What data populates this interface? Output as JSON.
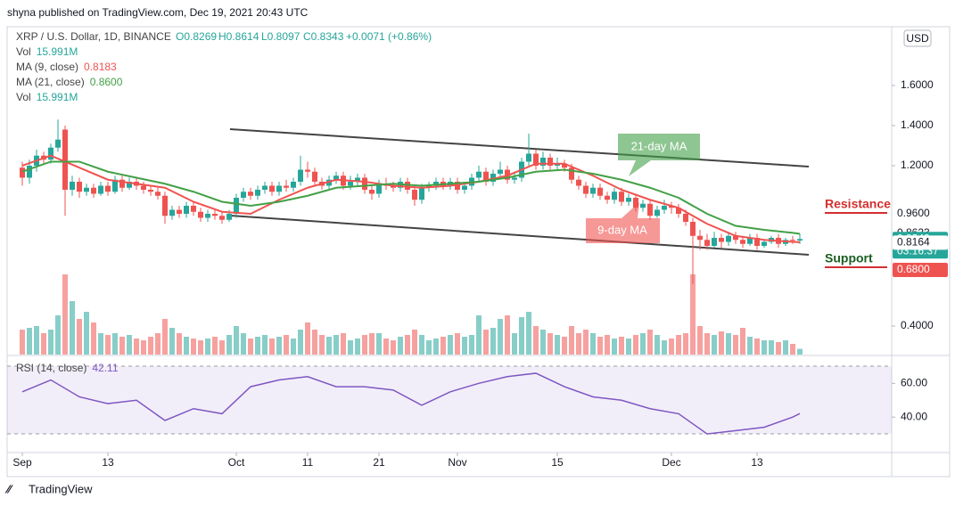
{
  "header": {
    "publisher": "shyna published on TradingView.com, Dec 19, 2021 20:43 UTC",
    "symbol": "XRP / U.S. Dollar, 1D, BINANCE",
    "ohlc": [
      "O0.8269",
      "H0.8614",
      "L0.8097",
      "C0.8343"
    ],
    "change": "+0.0071 (+0.86%)",
    "currency": "USD",
    "brand": "TradingView"
  },
  "chart_data": {
    "type": "candlestick",
    "legend": [
      {
        "name": "Vol",
        "value": "15.991M"
      },
      {
        "name": "MA (9, close)",
        "value": "0.8183"
      },
      {
        "name": "MA (21, close)",
        "value": "0.8600"
      },
      {
        "name": "Vol",
        "value": "15.991M"
      }
    ],
    "categories": [
      "Sep",
      null,
      null,
      null,
      null,
      null,
      null,
      null,
      null,
      null,
      null,
      null,
      "13",
      null,
      null,
      null,
      null,
      null,
      null,
      null,
      null,
      null,
      null,
      null,
      null,
      null,
      null,
      null,
      null,
      null,
      "Oct",
      null,
      null,
      null,
      null,
      null,
      null,
      null,
      null,
      null,
      "11",
      null,
      null,
      null,
      null,
      null,
      null,
      null,
      null,
      null,
      "21",
      null,
      null,
      null,
      null,
      null,
      null,
      null,
      null,
      null,
      null,
      "Nov",
      null,
      null,
      null,
      null,
      null,
      null,
      null,
      null,
      null,
      null,
      null,
      null,
      null,
      "15",
      null,
      null,
      null,
      null,
      null,
      null,
      null,
      null,
      null,
      null,
      null,
      null,
      null,
      null,
      null,
      "Dec",
      null,
      null,
      null,
      null,
      null,
      null,
      null,
      null,
      null,
      null,
      null,
      "13",
      null,
      null,
      null,
      null,
      null,
      null
    ],
    "open": [
      1.19,
      1.14,
      1.2,
      1.25,
      1.23,
      1.29,
      1.38,
      1.08,
      1.12,
      1.07,
      1.09,
      1.06,
      1.1,
      1.07,
      1.13,
      1.09,
      1.12,
      1.1,
      1.08,
      1.07,
      1.05,
      0.95,
      0.98,
      0.96,
      1.0,
      0.97,
      0.94,
      0.96,
      0.95,
      0.93,
      0.96,
      1.04,
      1.07,
      1.05,
      1.08,
      1.1,
      1.07,
      1.1,
      1.09,
      1.12,
      1.18,
      1.17,
      1.12,
      1.1,
      1.13,
      1.15,
      1.1,
      1.12,
      1.14,
      1.08,
      1.06,
      1.11,
      1.1,
      1.09,
      1.12,
      1.08,
      1.03,
      1.09,
      1.1,
      1.12,
      1.1,
      1.12,
      1.08,
      1.1,
      1.14,
      1.17,
      1.12,
      1.16,
      1.18,
      1.13,
      1.14,
      1.22,
      1.26,
      1.2,
      1.24,
      1.2,
      1.21,
      1.19,
      1.13,
      1.1,
      1.06,
      1.09,
      1.05,
      1.03,
      1.07,
      1.02,
      1.04,
      0.99,
      1.01,
      0.95,
      0.98,
      1.0,
      0.99,
      0.96,
      0.92,
      0.85,
      0.83,
      0.8,
      0.84,
      0.82,
      0.85,
      0.83,
      0.81,
      0.84,
      0.8,
      0.82,
      0.84,
      0.81,
      0.83,
      0.8269
    ],
    "high": [
      1.22,
      1.23,
      1.28,
      1.27,
      1.31,
      1.43,
      1.4,
      1.15,
      1.14,
      1.11,
      1.11,
      1.12,
      1.12,
      1.15,
      1.15,
      1.14,
      1.14,
      1.12,
      1.1,
      1.09,
      1.07,
      1.0,
      1.0,
      1.02,
      1.02,
      0.99,
      0.98,
      0.98,
      0.97,
      0.98,
      1.06,
      1.09,
      1.09,
      1.1,
      1.12,
      1.12,
      1.12,
      1.13,
      1.14,
      1.25,
      1.22,
      1.19,
      1.14,
      1.15,
      1.17,
      1.17,
      1.15,
      1.16,
      1.16,
      1.1,
      1.13,
      1.14,
      1.12,
      1.14,
      1.14,
      1.1,
      1.11,
      1.12,
      1.14,
      1.14,
      1.14,
      1.14,
      1.12,
      1.16,
      1.2,
      1.19,
      1.18,
      1.22,
      1.2,
      1.17,
      1.24,
      1.36,
      1.28,
      1.27,
      1.26,
      1.24,
      1.23,
      1.21,
      1.15,
      1.12,
      1.11,
      1.11,
      1.07,
      1.09,
      1.09,
      1.06,
      1.06,
      1.03,
      1.03,
      1.0,
      1.03,
      1.02,
      1.01,
      0.98,
      0.94,
      0.88,
      0.86,
      0.87,
      0.86,
      0.87,
      0.87,
      0.85,
      0.86,
      0.86,
      0.83,
      0.85,
      0.86,
      0.84,
      0.85,
      0.8614
    ],
    "low": [
      1.1,
      1.11,
      1.17,
      1.21,
      1.21,
      1.27,
      0.95,
      1.05,
      1.04,
      1.05,
      1.04,
      1.05,
      1.05,
      1.06,
      1.07,
      1.08,
      1.08,
      1.06,
      1.05,
      1.03,
      0.91,
      0.93,
      0.94,
      0.94,
      0.95,
      0.92,
      0.92,
      0.93,
      0.91,
      0.92,
      0.94,
      1.02,
      1.03,
      1.03,
      1.06,
      1.05,
      1.05,
      1.07,
      1.07,
      1.1,
      1.14,
      1.1,
      1.08,
      1.08,
      1.11,
      1.08,
      1.08,
      1.1,
      1.06,
      1.03,
      1.04,
      1.08,
      1.07,
      1.07,
      1.06,
      1.0,
      1.01,
      1.07,
      1.08,
      1.08,
      1.08,
      1.06,
      1.06,
      1.08,
      1.12,
      1.1,
      1.1,
      1.14,
      1.11,
      1.11,
      1.12,
      1.2,
      1.18,
      1.18,
      1.18,
      1.18,
      1.17,
      1.11,
      1.08,
      1.04,
      1.04,
      1.03,
      1.01,
      1.01,
      1.0,
      1.0,
      0.97,
      0.97,
      0.93,
      0.94,
      0.96,
      0.96,
      0.94,
      0.9,
      0.61,
      0.78,
      0.78,
      0.79,
      0.79,
      0.8,
      0.81,
      0.79,
      0.8,
      0.78,
      0.79,
      0.81,
      0.79,
      0.8,
      0.81,
      0.8097
    ],
    "close": [
      1.14,
      1.2,
      1.25,
      1.23,
      1.29,
      1.33,
      1.08,
      1.12,
      1.07,
      1.09,
      1.06,
      1.1,
      1.07,
      1.13,
      1.09,
      1.12,
      1.1,
      1.08,
      1.07,
      1.05,
      0.95,
      0.98,
      0.96,
      1.0,
      0.97,
      0.94,
      0.96,
      0.95,
      0.93,
      0.96,
      1.04,
      1.07,
      1.05,
      1.08,
      1.1,
      1.07,
      1.1,
      1.09,
      1.12,
      1.18,
      1.17,
      1.12,
      1.1,
      1.13,
      1.15,
      1.1,
      1.12,
      1.14,
      1.08,
      1.06,
      1.11,
      1.1,
      1.09,
      1.12,
      1.08,
      1.03,
      1.09,
      1.1,
      1.12,
      1.1,
      1.12,
      1.08,
      1.1,
      1.14,
      1.17,
      1.12,
      1.16,
      1.18,
      1.13,
      1.14,
      1.22,
      1.26,
      1.2,
      1.24,
      1.2,
      1.21,
      1.19,
      1.13,
      1.1,
      1.06,
      1.09,
      1.05,
      1.03,
      1.07,
      1.02,
      1.04,
      0.99,
      1.01,
      0.95,
      0.98,
      1.0,
      0.99,
      0.96,
      0.92,
      0.85,
      0.83,
      0.8,
      0.84,
      0.82,
      0.85,
      0.83,
      0.81,
      0.84,
      0.8,
      0.82,
      0.84,
      0.81,
      0.83,
      0.8272,
      0.8343
    ],
    "volume": [
      70,
      75,
      80,
      60,
      70,
      110,
      225,
      150,
      100,
      120,
      90,
      60,
      55,
      60,
      50,
      55,
      45,
      40,
      50,
      60,
      100,
      75,
      60,
      50,
      45,
      40,
      45,
      50,
      40,
      55,
      80,
      60,
      45,
      50,
      55,
      45,
      50,
      55,
      45,
      70,
      90,
      70,
      55,
      50,
      55,
      60,
      40,
      45,
      55,
      60,
      60,
      45,
      40,
      50,
      55,
      70,
      55,
      40,
      45,
      50,
      55,
      60,
      50,
      55,
      110,
      70,
      75,
      100,
      110,
      60,
      105,
      120,
      80,
      70,
      60,
      55,
      50,
      80,
      60,
      70,
      60,
      50,
      55,
      45,
      50,
      45,
      55,
      60,
      70,
      55,
      40,
      45,
      55,
      60,
      225,
      80,
      60,
      55,
      65,
      60,
      55,
      75,
      50,
      45,
      40,
      40,
      35,
      40,
      30,
      16
    ],
    "up_color": "#26a69a",
    "down_color": "#ef5350",
    "series": [
      {
        "name": "MA (9, close)",
        "color": "#f05350",
        "x": [
          0,
          4,
          8,
          12,
          16,
          20,
          24,
          28,
          32,
          36,
          40,
          44,
          48,
          52,
          56,
          60,
          64,
          68,
          72,
          76,
          80,
          84,
          88,
          92,
          96,
          100,
          104,
          108,
          109
        ],
        "values": [
          1.2,
          1.25,
          1.19,
          1.13,
          1.11,
          1.09,
          1.02,
          0.97,
          0.96,
          1.03,
          1.09,
          1.13,
          1.12,
          1.1,
          1.09,
          1.1,
          1.12,
          1.15,
          1.21,
          1.21,
          1.15,
          1.08,
          1.03,
          0.99,
          0.91,
          0.85,
          0.83,
          0.82,
          0.8183
        ]
      },
      {
        "name": "MA (21, close)",
        "color": "#43a047",
        "x": [
          0,
          4,
          8,
          12,
          16,
          20,
          24,
          28,
          32,
          36,
          40,
          44,
          48,
          52,
          56,
          60,
          64,
          68,
          72,
          76,
          80,
          84,
          88,
          92,
          96,
          100,
          104,
          108,
          109
        ],
        "values": [
          1.17,
          1.22,
          1.22,
          1.17,
          1.14,
          1.11,
          1.07,
          1.02,
          1.0,
          1.02,
          1.05,
          1.09,
          1.1,
          1.11,
          1.1,
          1.11,
          1.12,
          1.14,
          1.17,
          1.18,
          1.16,
          1.13,
          1.09,
          1.04,
          0.96,
          0.9,
          0.88,
          0.865,
          0.86
        ]
      }
    ],
    "ylim": [
      0.258,
      1.893
    ],
    "yticks": [
      {
        "value": 0.4,
        "label": "0.4000"
      },
      {
        "value": 1.2,
        "label": "1.2000"
      },
      {
        "value": 1.4,
        "label": "1.4000"
      },
      {
        "value": 1.6,
        "label": "1.6000"
      }
    ],
    "price_tags": [
      {
        "value": 0.96,
        "label": "0.9600",
        "color": "#ffffff"
      },
      {
        "value": 0.8623,
        "label": "0.8623",
        "color": "#ffffff"
      },
      {
        "value": 0.8343,
        "label": "0.8343",
        "color": "#26a69a"
      },
      {
        "value": 0.8164,
        "label": "0.8164",
        "color": "#ffffff"
      },
      {
        "value": 0.68,
        "label": "0.6800",
        "color": "#ef5350"
      }
    ],
    "countdown": "03:16:37",
    "annotations": {
      "resistance": "Resistance",
      "support": "Support",
      "ma21": "21-day MA",
      "ma9": "9-day MA"
    },
    "rsi": {
      "name": "RSI (14, close)",
      "value": "42.11",
      "color": "#7e57c2",
      "x": [
        0,
        4,
        8,
        12,
        16,
        20,
        24,
        28,
        32,
        36,
        40,
        44,
        48,
        52,
        56,
        60,
        64,
        68,
        72,
        76,
        80,
        84,
        88,
        92,
        96,
        100,
        104,
        108,
        109
      ],
      "values": [
        55,
        62,
        52,
        48,
        50,
        38,
        45,
        42,
        58,
        62,
        64,
        58,
        58,
        56,
        47,
        55,
        60,
        64,
        66,
        58,
        52,
        50,
        45,
        42,
        30,
        32,
        34,
        40,
        42.11
      ],
      "ylim": [
        19,
        76
      ],
      "yticks": [
        {
          "value": 60,
          "label": "60.00"
        },
        {
          "value": 40,
          "label": "40.00"
        }
      ]
    }
  }
}
